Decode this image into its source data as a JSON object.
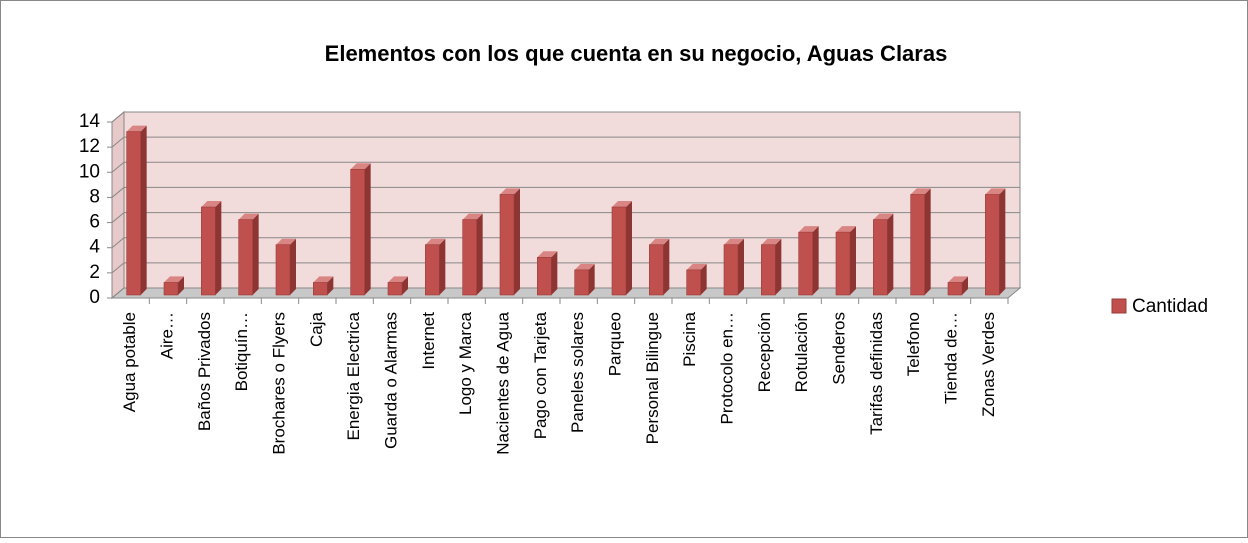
{
  "chart_data": {
    "type": "bar",
    "title": "Elementos con los que cuenta en su negocio, Aguas Claras",
    "categories": [
      "Agua potable",
      "Aire…",
      "Baños Privados",
      "Botiquín…",
      "Brochares o Flyers",
      "Caja",
      "Energia Electrica",
      "Guarda o Alarmas",
      "Internet",
      "Logo y Marca",
      "Nacientes de Agua",
      "Pago con Tarjeta",
      "Paneles solares",
      "Parqueo",
      "Personal Bilingue",
      "Piscina",
      "Protocolo en…",
      "Recepción",
      "Rotulación",
      "Senderos",
      "Tarifas definidas",
      "Telefono",
      "Tienda de…",
      "Zonas Verdes"
    ],
    "series": [
      {
        "name": "Cantidad",
        "color": "#c0504d",
        "values": [
          13,
          1,
          7,
          6,
          4,
          1,
          10,
          1,
          4,
          6,
          8,
          3,
          2,
          7,
          4,
          2,
          4,
          4,
          5,
          5,
          6,
          8,
          1,
          8
        ]
      }
    ],
    "ylim": [
      0,
      14
    ],
    "yticks": [
      0,
      2,
      4,
      6,
      8,
      10,
      12,
      14
    ],
    "grid": true,
    "legend": "right"
  }
}
